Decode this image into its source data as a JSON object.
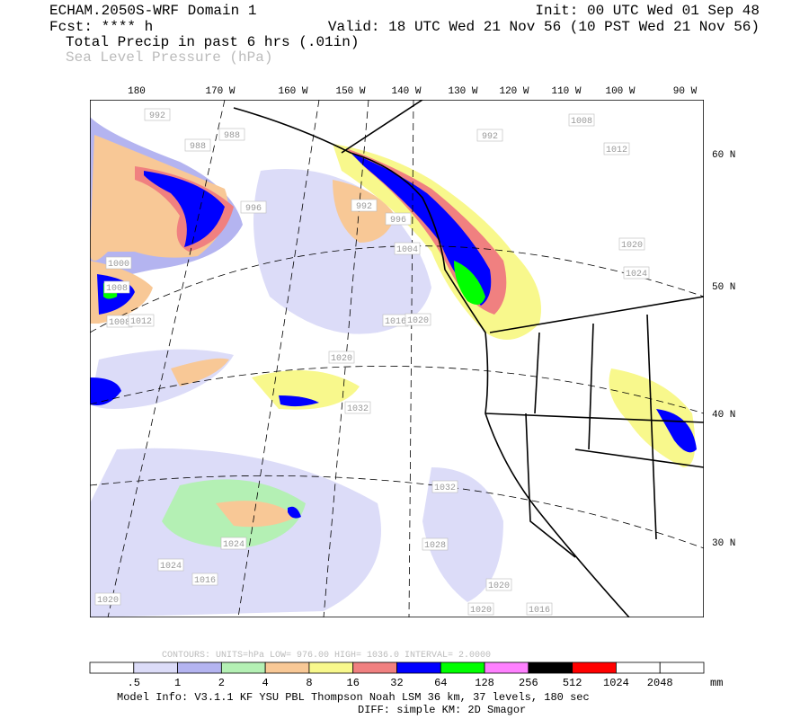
{
  "header": {
    "model": "ECHAM.2050S-WRF Domain 1",
    "fcst": "Fcst: **** h",
    "init": "Init: 00 UTC Wed 01 Sep 48",
    "valid": "Valid: 18 UTC Wed 21 Nov 56 (10 PST Wed 21 Nov 56)",
    "field1": "Total Precip in past 6 hrs (.01in)",
    "field2": "Sea Level Pressure (hPa)"
  },
  "map": {
    "lon_labels": [
      "180",
      "170 W",
      "160 W",
      "150 W",
      "140 W",
      "130 W",
      "120 W",
      "110 W",
      "100 W",
      "90 W"
    ],
    "lat_labels": [
      "60 N",
      "50 N",
      "40 N",
      "30 N"
    ],
    "contour_labels": [
      "992",
      "988",
      "988",
      "992",
      "1008",
      "1012",
      "996",
      "992",
      "996",
      "1004",
      "1016",
      "1020",
      "1024",
      "1000",
      "1008",
      "1008",
      "1012",
      "1020",
      "1024",
      "1032",
      "1032",
      "1028",
      "1024",
      "1020",
      "1016",
      "1020",
      "1016",
      "1020",
      "1020"
    ]
  },
  "colorbar": {
    "contours": "CONTOURS:  UNITS=hPa  LOW=  976.00     HIGH=  1036.0     INTERVAL=   2.0000",
    "labels": [
      ".5",
      "1",
      "2",
      "4",
      "8",
      "16",
      "32",
      "64",
      "128",
      "256",
      "512",
      "1024",
      "2048"
    ],
    "unit": "mm",
    "colors": [
      "#ffffff",
      "#dcdcf8",
      "#b4b4f0",
      "#b4f0b4",
      "#f8c896",
      "#f8f88c",
      "#f08080",
      "#0000ff",
      "#00ff00",
      "#ff80ff",
      "#000000",
      "#ff0000",
      "#ffffff",
      "#ffffff"
    ]
  },
  "footer": {
    "model_info": "Model Info: V3.1.1    KF     YSU PBL   Thompson    Noah LSM   36 km,   37 levels,  180 sec",
    "diff": "DIFF: simple KM: 2D Smagor"
  }
}
